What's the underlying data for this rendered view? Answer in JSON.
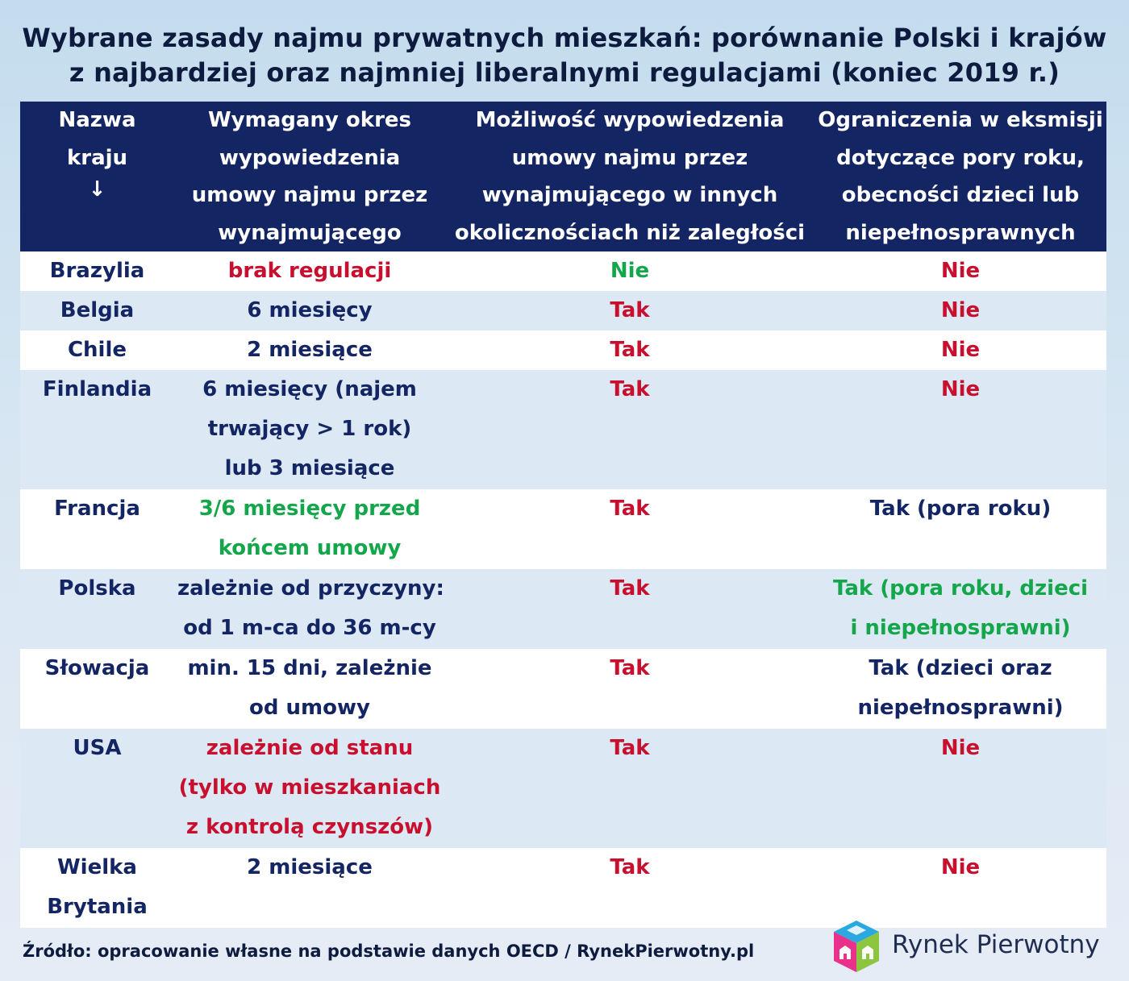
{
  "title": {
    "line1": "Wybrane zasady najmu prywatnych mieszkań: porównanie Polski i krajów",
    "line2": "z najbardziej oraz najmniej liberalnymi regulacjami (koniec 2019 r.)"
  },
  "header": {
    "col1": [
      "Nazwa",
      "kraju",
      "↓"
    ],
    "col2": [
      "Wymagany okres",
      "wypowiedzenia",
      "umowy najmu przez",
      "wynajmującego"
    ],
    "col3": [
      "Możliwość wypowiedzenia",
      "umowy najmu przez",
      "wynajmującego w innych",
      "okolicznościach niż zaległości"
    ],
    "col4": [
      "Ograniczenia w eksmisji",
      "dotyczące pory roku,",
      "obecności dzieci lub",
      "niepełnosprawnych"
    ]
  },
  "rows": [
    {
      "country": [
        "Brazylia"
      ],
      "notice": [
        "brak regulacji"
      ],
      "notice_color": "red",
      "other": "Nie",
      "other_color": "green",
      "evict": [
        "Nie"
      ],
      "evict_color": "red"
    },
    {
      "country": [
        "Belgia"
      ],
      "notice": [
        "6 miesięcy"
      ],
      "notice_color": "navy",
      "other": "Tak",
      "other_color": "red",
      "evict": [
        "Nie"
      ],
      "evict_color": "red"
    },
    {
      "country": [
        "Chile"
      ],
      "notice": [
        "2 miesiące"
      ],
      "notice_color": "navy",
      "other": "Tak",
      "other_color": "red",
      "evict": [
        "Nie"
      ],
      "evict_color": "red"
    },
    {
      "country": [
        "Finlandia"
      ],
      "notice": [
        "6 miesięcy (najem",
        "trwający > 1 rok)",
        "lub 3 miesiące"
      ],
      "notice_color": "navy",
      "other": "Tak",
      "other_color": "red",
      "evict": [
        "Nie"
      ],
      "evict_color": "red"
    },
    {
      "country": [
        "Francja"
      ],
      "notice": [
        "3/6 miesięcy przed",
        "końcem umowy"
      ],
      "notice_color": "green",
      "other": "Tak",
      "other_color": "red",
      "evict": [
        "Tak (pora roku)"
      ],
      "evict_color": "navy"
    },
    {
      "country": [
        "Polska"
      ],
      "notice": [
        "zależnie od przyczyny:",
        "od 1 m-ca do 36 m-cy"
      ],
      "notice_color": "navy",
      "other": "Tak",
      "other_color": "red",
      "evict": [
        "Tak (pora roku, dzieci",
        "i niepełnosprawni)"
      ],
      "evict_color": "green"
    },
    {
      "country": [
        "Słowacja"
      ],
      "notice": [
        "min. 15 dni, zależnie",
        "od umowy"
      ],
      "notice_color": "navy",
      "other": "Tak",
      "other_color": "red",
      "evict": [
        "Tak (dzieci oraz",
        "niepełnosprawni)"
      ],
      "evict_color": "navy"
    },
    {
      "country": [
        "USA"
      ],
      "notice": [
        "zależnie od stanu",
        "(tylko w mieszkaniach",
        "z kontrolą czynszów)"
      ],
      "notice_color": "red",
      "other": "Tak",
      "other_color": "red",
      "evict": [
        "Nie"
      ],
      "evict_color": "red"
    },
    {
      "country": [
        "Wielka",
        "Brytania"
      ],
      "notice": [
        "2 miesiące"
      ],
      "notice_color": "navy",
      "other": "Tak",
      "other_color": "red",
      "evict": [
        "Nie"
      ],
      "evict_color": "red"
    }
  ],
  "footer": {
    "source": "Źródło: opracowanie własne na podstawie danych OECD / RynekPierwotny.pl"
  },
  "logo": {
    "text": "Rynek Pierwotny"
  },
  "colors": {
    "header_bg": "#142563",
    "navy": "#142563",
    "red": "#c8102e",
    "green": "#14a64a",
    "row_alt": "#dce8f4"
  }
}
